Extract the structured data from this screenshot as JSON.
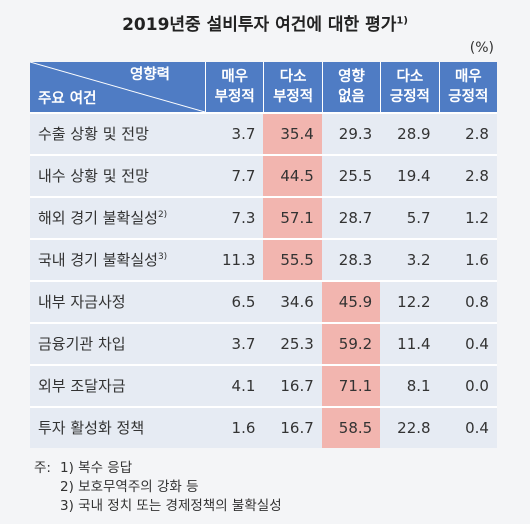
{
  "title": {
    "text": "2019년중 설비투자 여건에 대한 평가",
    "note": "1)"
  },
  "unit": "(%)",
  "table": {
    "corner": {
      "top": "영향력",
      "bottom": "주요 여건"
    },
    "columns": [
      [
        "매우",
        "부정적"
      ],
      [
        "다소",
        "부정적"
      ],
      [
        "영향",
        "없음"
      ],
      [
        "다소",
        "긍정적"
      ],
      [
        "매우",
        "긍정적"
      ]
    ],
    "rows": [
      {
        "label": "수출 상황 및 전망",
        "values": [
          "3.7",
          "35.4",
          "29.3",
          "28.9",
          "2.8"
        ]
      },
      {
        "label": "내수 상황 및 전망",
        "values": [
          "7.7",
          "44.5",
          "25.5",
          "19.4",
          "2.8"
        ]
      },
      {
        "label": "해외 경기 불확실성",
        "note": "2)",
        "values": [
          "7.3",
          "57.1",
          "28.7",
          "5.7",
          "1.2"
        ]
      },
      {
        "label": "국내 경기 불확실성",
        "note": "3)",
        "values": [
          "11.3",
          "55.5",
          "28.3",
          "3.2",
          "1.6"
        ]
      },
      {
        "label": "내부 자금사정",
        "values": [
          "6.5",
          "34.6",
          "45.9",
          "12.2",
          "0.8"
        ]
      },
      {
        "label": "금융기관 차입",
        "values": [
          "3.7",
          "25.3",
          "59.2",
          "11.4",
          "0.4"
        ]
      },
      {
        "label": "외부 조달자금",
        "values": [
          "4.1",
          "16.7",
          "71.1",
          "8.1",
          "0.0"
        ]
      },
      {
        "label": "투자 활성화 정책",
        "values": [
          "1.6",
          "16.7",
          "58.5",
          "22.8",
          "0.4"
        ]
      }
    ]
  },
  "footnotes": {
    "lead": "주:",
    "items": [
      "1) 복수 응답",
      "2) 보호무역주의 강화 등",
      "3) 국내 정치 또는 경제정책의 불확실성"
    ]
  }
}
